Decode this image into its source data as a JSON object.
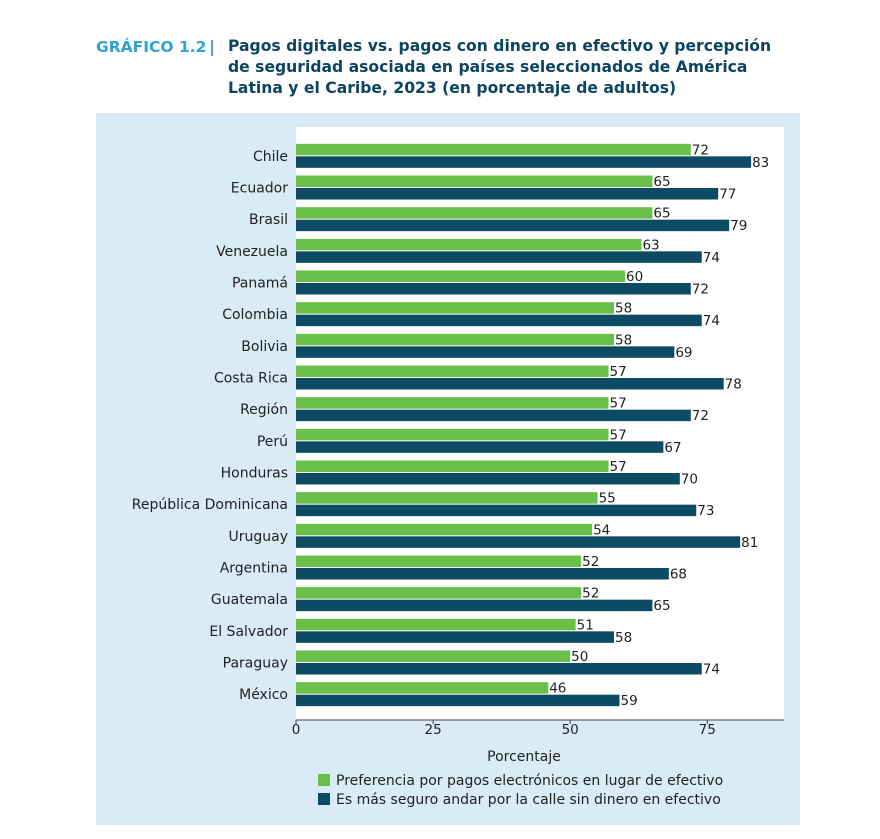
{
  "header": {
    "label": "GRÁFICO 1.2",
    "separator": "|",
    "title": "Pagos digitales vs. pagos con dinero en efectivo y percepción de seguridad asociada en países seleccionados de América Latina y el Caribe, 2023 (en porcentaje de adultos)"
  },
  "chart_data": {
    "type": "bar",
    "orientation": "horizontal",
    "categories": [
      "Chile",
      "Ecuador",
      "Brasil",
      "Venezuela",
      "Panamá",
      "Colombia",
      "Bolivia",
      "Costa Rica",
      "Región",
      "Perú",
      "Honduras",
      "República Dominicana",
      "Uruguay",
      "Argentina",
      "Guatemala",
      "El Salvador",
      "Paraguay",
      "México"
    ],
    "series": [
      {
        "name": "Preferencia por pagos electrónicos en lugar de efectivo",
        "color": "#6abf4b",
        "values": [
          72,
          65,
          65,
          63,
          60,
          58,
          58,
          57,
          57,
          57,
          57,
          55,
          54,
          52,
          52,
          51,
          50,
          46
        ]
      },
      {
        "name": "Es más seguro andar por la calle sin dinero en efectivo",
        "color": "#0d4a63",
        "values": [
          83,
          77,
          79,
          74,
          72,
          74,
          69,
          78,
          72,
          67,
          70,
          73,
          81,
          68,
          65,
          58,
          74,
          59
        ]
      }
    ],
    "xlabel": "Porcentaje",
    "xlim": [
      0,
      89
    ],
    "xticks": [
      0,
      25,
      50,
      75
    ],
    "legend_position": "bottom"
  }
}
